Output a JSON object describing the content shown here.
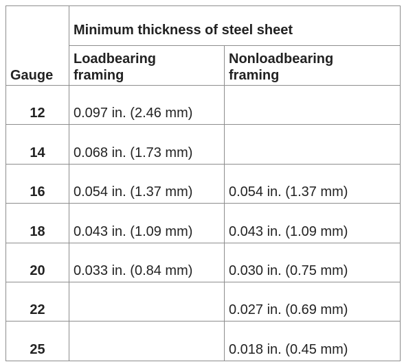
{
  "table": {
    "title": "Minimum thickness of steel sheet",
    "header": [
      "Gauge",
      "Loadbearing framing",
      "Nonloadbearing framing"
    ],
    "rows": [
      [
        "12",
        "0.097 in. (2.46 mm)",
        null
      ],
      [
        "14",
        "0.068 in. (1.73 mm)",
        null
      ],
      [
        "16",
        "0.054 in. (1.37 mm)",
        "0.054 in. (1.37 mm)"
      ],
      [
        "18",
        "0.043 in. (1.09 mm)",
        "0.043 in. (1.09 mm)"
      ],
      [
        "20",
        "0.033 in. (0.84 mm)",
        "0.030 in. (0.75 mm)"
      ],
      [
        "22",
        null,
        "0.027 in. (0.69 mm)"
      ],
      [
        "25",
        null,
        "0.018 in. (0.45 mm)"
      ]
    ]
  }
}
